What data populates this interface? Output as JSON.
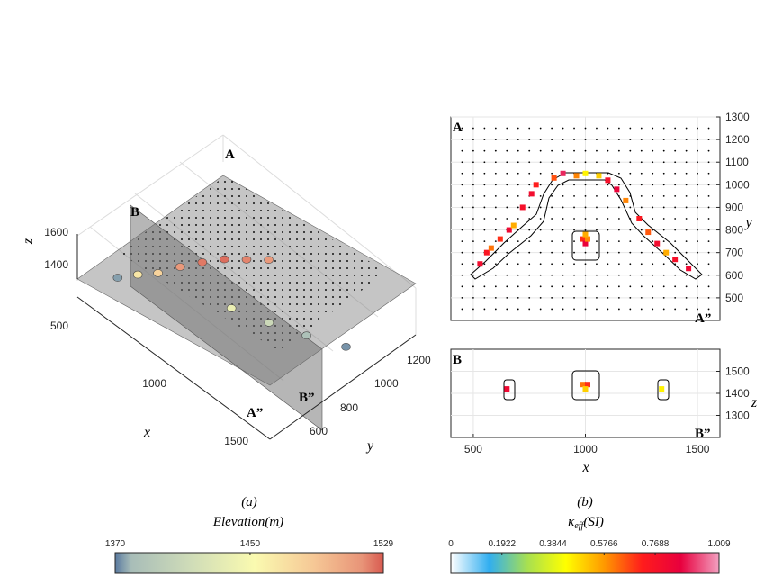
{
  "chart_data": [
    {
      "type": "scatter",
      "panel_label": "(a)",
      "view": "3d",
      "xlabel": "x",
      "ylabel": "y",
      "zlabel": "z",
      "x_ticks": [
        "500",
        "1000",
        "1500"
      ],
      "y_ticks": [
        "600",
        "800",
        "1000",
        "1200"
      ],
      "z_ticks": [
        "1400",
        "1600"
      ],
      "section_labels": [
        "A",
        "B",
        "A”",
        "B”"
      ],
      "grid": true,
      "series": [
        {
          "name": "",
          "points": [
            {
              "x": 520,
              "y": 600,
              "z": 1420,
              "elevation": 1385
            },
            {
              "x": 580,
              "y": 650,
              "z": 1440,
              "elevation": 1460
            },
            {
              "x": 640,
              "y": 700,
              "z": 1450,
              "elevation": 1470
            },
            {
              "x": 700,
              "y": 760,
              "z": 1480,
              "elevation": 1500
            },
            {
              "x": 760,
              "y": 820,
              "z": 1500,
              "elevation": 1515
            },
            {
              "x": 820,
              "y": 880,
              "z": 1510,
              "elevation": 1520
            },
            {
              "x": 880,
              "y": 940,
              "z": 1500,
              "elevation": 1510
            },
            {
              "x": 940,
              "y": 1000,
              "z": 1490,
              "elevation": 1500
            },
            {
              "x": 1000,
              "y": 760,
              "z": 1450,
              "elevation": 1440
            },
            {
              "x": 1150,
              "y": 820,
              "z": 1420,
              "elevation": 1420
            },
            {
              "x": 1300,
              "y": 880,
              "z": 1400,
              "elevation": 1400
            },
            {
              "x": 1450,
              "y": 950,
              "z": 1380,
              "elevation": 1380
            }
          ]
        }
      ]
    },
    {
      "type": "heatmap",
      "panel_label": "(b)",
      "view": "plan A-A”",
      "ylabel": "y",
      "ylim": [
        400,
        1300
      ],
      "y_ticks": [
        "500",
        "600",
        "700",
        "800",
        "900",
        "1000",
        "1100",
        "1200",
        "1300"
      ],
      "corner_labels": [
        "A",
        "A”"
      ],
      "cells": [
        {
          "x": 530,
          "y": 650,
          "v": 0.8
        },
        {
          "x": 560,
          "y": 700,
          "v": 0.75
        },
        {
          "x": 580,
          "y": 720,
          "v": 0.62
        },
        {
          "x": 620,
          "y": 760,
          "v": 0.7
        },
        {
          "x": 660,
          "y": 800,
          "v": 0.82
        },
        {
          "x": 680,
          "y": 820,
          "v": 0.55
        },
        {
          "x": 720,
          "y": 900,
          "v": 0.78
        },
        {
          "x": 760,
          "y": 960,
          "v": 0.8
        },
        {
          "x": 780,
          "y": 1000,
          "v": 0.72
        },
        {
          "x": 860,
          "y": 1030,
          "v": 0.66
        },
        {
          "x": 900,
          "y": 1050,
          "v": 0.9
        },
        {
          "x": 960,
          "y": 1040,
          "v": 0.6
        },
        {
          "x": 1000,
          "y": 1050,
          "v": 0.45
        },
        {
          "x": 1060,
          "y": 1040,
          "v": 0.5
        },
        {
          "x": 1100,
          "y": 1020,
          "v": 0.78
        },
        {
          "x": 1140,
          "y": 980,
          "v": 0.85
        },
        {
          "x": 1180,
          "y": 930,
          "v": 0.6
        },
        {
          "x": 1240,
          "y": 850,
          "v": 0.74
        },
        {
          "x": 1280,
          "y": 790,
          "v": 0.65
        },
        {
          "x": 1320,
          "y": 740,
          "v": 0.8
        },
        {
          "x": 1360,
          "y": 700,
          "v": 0.55
        },
        {
          "x": 1400,
          "y": 670,
          "v": 0.78
        },
        {
          "x": 1460,
          "y": 630,
          "v": 0.82
        },
        {
          "x": 990,
          "y": 760,
          "v": 0.7
        },
        {
          "x": 1000,
          "y": 740,
          "v": 0.85
        },
        {
          "x": 1010,
          "y": 760,
          "v": 0.6
        },
        {
          "x": 1000,
          "y": 780,
          "v": 0.55
        }
      ]
    },
    {
      "type": "heatmap",
      "panel_label": "(b)",
      "view": "section B-B”",
      "xlabel": "x",
      "ylabel": "z",
      "xlim": [
        400,
        1600
      ],
      "ylim": [
        1200,
        1600
      ],
      "x_ticks": [
        "500",
        "1000",
        "1500"
      ],
      "y_ticks": [
        "1300",
        "1400",
        "1500"
      ],
      "corner_labels": [
        "B",
        "B”"
      ],
      "cells": [
        {
          "x": 650,
          "y": 1420,
          "v": 0.82
        },
        {
          "x": 990,
          "y": 1440,
          "v": 0.62
        },
        {
          "x": 1010,
          "y": 1440,
          "v": 0.7
        },
        {
          "x": 1000,
          "y": 1420,
          "v": 0.5
        },
        {
          "x": 1340,
          "y": 1420,
          "v": 0.45
        }
      ]
    }
  ],
  "colorbars": {
    "elevation": {
      "title": "Elevation(m)",
      "ticks": [
        "1370",
        "1450",
        "1529"
      ],
      "range": [
        1370,
        1529
      ],
      "colors": [
        "#5a7aa0",
        "#a8bdb8",
        "#cfdcb8",
        "#fafab0",
        "#f6c896",
        "#e89478",
        "#d85a50"
      ],
      "stops": [
        0,
        0.06,
        0.28,
        0.52,
        0.74,
        0.92,
        1.0
      ]
    },
    "kappa": {
      "title": "κeff(SI)",
      "title_main": "κ",
      "title_sub": "eff",
      "title_tail": "(SI)",
      "ticks": [
        "0",
        "0.1922",
        "0.3844",
        "0.5766",
        "0.7688",
        "1.009"
      ],
      "range": [
        0,
        1.009
      ],
      "colors": [
        "#ffffff",
        "#31aef0",
        "#a8e050",
        "#ffff00",
        "#ff9900",
        "#ff1c1c",
        "#e8003e",
        "#f2a0c0"
      ]
    }
  }
}
